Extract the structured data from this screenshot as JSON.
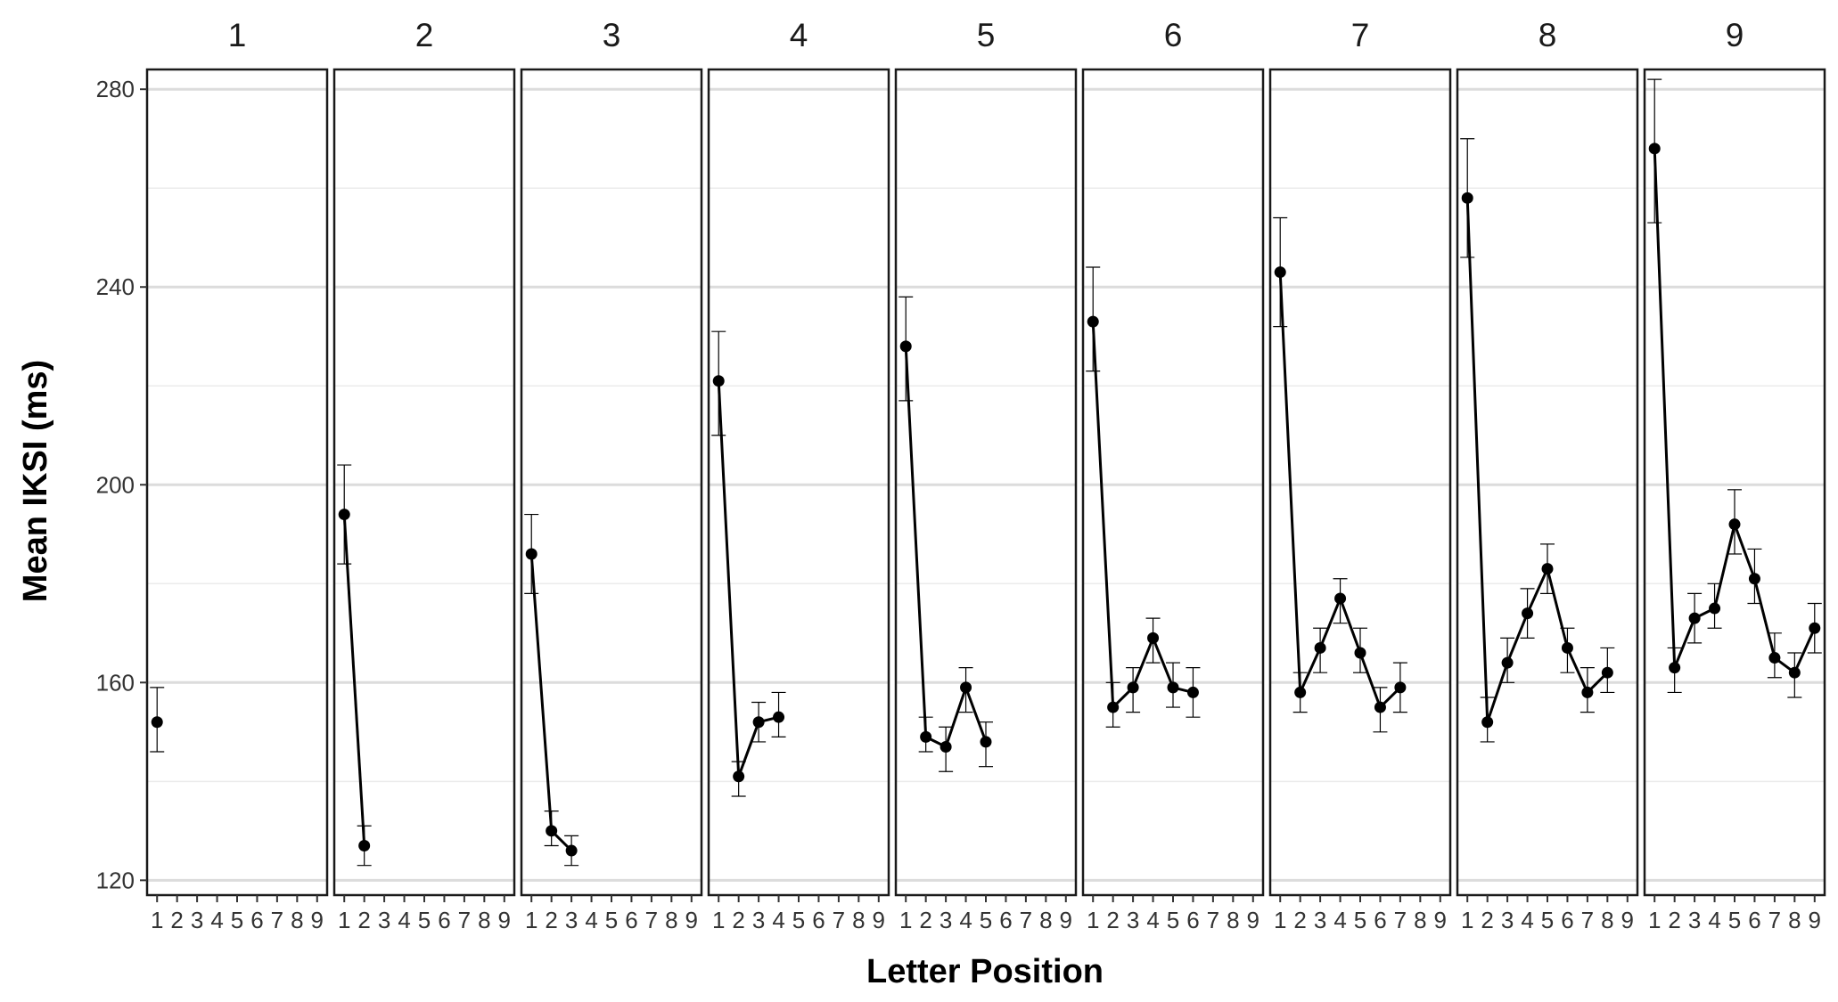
{
  "chart_data": {
    "type": "line",
    "xlabel": "Letter Position",
    "ylabel": "Mean IKSI (ms)",
    "ylim": [
      117,
      284
    ],
    "y_ticks": [
      "120",
      "160",
      "200",
      "240",
      "280"
    ],
    "y_minor": [
      140,
      180,
      220,
      260
    ],
    "x_ticks": [
      "1",
      "2",
      "3",
      "4",
      "5",
      "6",
      "7",
      "8",
      "9"
    ],
    "xlim": [
      0.5,
      9.5
    ],
    "grid": true,
    "legend": "none",
    "panels": [
      {
        "label": "1",
        "x": [
          1
        ],
        "y": [
          152
        ],
        "lower": [
          146
        ],
        "upper": [
          159
        ]
      },
      {
        "label": "2",
        "x": [
          1,
          2
        ],
        "y": [
          194,
          127
        ],
        "lower": [
          184,
          123
        ],
        "upper": [
          204,
          131
        ]
      },
      {
        "label": "3",
        "x": [
          1,
          2,
          3
        ],
        "y": [
          186,
          130,
          126
        ],
        "lower": [
          178,
          127,
          123
        ],
        "upper": [
          194,
          134,
          129
        ]
      },
      {
        "label": "4",
        "x": [
          1,
          2,
          3,
          4
        ],
        "y": [
          221,
          141,
          152,
          153
        ],
        "lower": [
          210,
          137,
          148,
          149
        ],
        "upper": [
          231,
          144,
          156,
          158
        ]
      },
      {
        "label": "5",
        "x": [
          1,
          2,
          3,
          4,
          5
        ],
        "y": [
          228,
          149,
          147,
          159,
          148
        ],
        "lower": [
          217,
          146,
          142,
          154,
          143
        ],
        "upper": [
          238,
          153,
          151,
          163,
          152
        ]
      },
      {
        "label": "6",
        "x": [
          1,
          2,
          3,
          4,
          5,
          6
        ],
        "y": [
          233,
          155,
          159,
          169,
          159,
          158
        ],
        "lower": [
          223,
          151,
          154,
          164,
          155,
          153
        ],
        "upper": [
          244,
          160,
          163,
          173,
          164,
          163
        ]
      },
      {
        "label": "7",
        "x": [
          1,
          2,
          3,
          4,
          5,
          6,
          7
        ],
        "y": [
          243,
          158,
          167,
          177,
          166,
          155,
          159
        ],
        "lower": [
          232,
          154,
          162,
          172,
          162,
          150,
          154
        ],
        "upper": [
          254,
          162,
          171,
          181,
          171,
          159,
          164
        ]
      },
      {
        "label": "8",
        "x": [
          1,
          2,
          3,
          4,
          5,
          6,
          7,
          8
        ],
        "y": [
          258,
          152,
          164,
          174,
          183,
          167,
          158,
          162
        ],
        "lower": [
          246,
          148,
          160,
          169,
          178,
          162,
          154,
          158
        ],
        "upper": [
          270,
          157,
          169,
          179,
          188,
          171,
          163,
          167
        ]
      },
      {
        "label": "9",
        "x": [
          1,
          2,
          3,
          4,
          5,
          6,
          7,
          8,
          9
        ],
        "y": [
          268,
          163,
          173,
          175,
          192,
          181,
          165,
          162,
          171
        ],
        "lower": [
          253,
          158,
          168,
          171,
          186,
          176,
          161,
          157,
          166
        ],
        "upper": [
          282,
          167,
          178,
          180,
          199,
          187,
          170,
          166,
          176
        ]
      }
    ]
  }
}
